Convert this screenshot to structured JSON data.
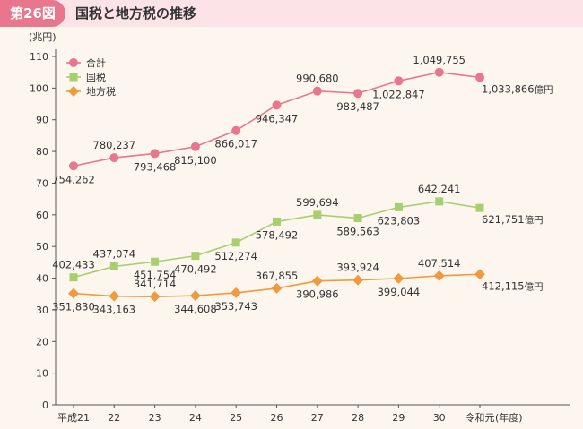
{
  "header": {
    "figure_number": "第26図",
    "title": "国税と地方税の推移"
  },
  "chart_data": {
    "type": "line",
    "title": "国税と地方税の推移",
    "ylabel": "(兆円)",
    "xlabel": "(年度)",
    "ylim": [
      0,
      110
    ],
    "yticks": [
      0,
      10,
      20,
      30,
      40,
      50,
      60,
      70,
      80,
      90,
      100,
      110
    ],
    "categories": [
      "平成21",
      "22",
      "23",
      "24",
      "25",
      "26",
      "27",
      "28",
      "29",
      "30",
      "令和元"
    ],
    "legend_position": "top-left",
    "grid": false,
    "series": [
      {
        "name": "合計",
        "color": "#e8768d",
        "marker": "circle",
        "values": [
          75.4262,
          78.0237,
          79.3468,
          81.51,
          86.6017,
          94.6347,
          99.068,
          98.3487,
          102.2847,
          104.9755,
          103.3866
        ],
        "labels": [
          "754,262",
          "780,237",
          "793,468",
          "815,100",
          "866,017",
          "946,347",
          "990,680",
          "983,487",
          "1,022,847",
          "1,049,755",
          "1,033,866"
        ],
        "end_unit": "億円"
      },
      {
        "name": "国税",
        "color": "#a8cf6f",
        "marker": "square",
        "values": [
          40.2433,
          43.7074,
          45.1754,
          47.0492,
          51.2274,
          57.8492,
          59.9694,
          58.9563,
          62.3803,
          64.2241,
          62.1751
        ],
        "labels": [
          "402,433",
          "437,074",
          "451,754",
          "470,492",
          "512,274",
          "578,492",
          "599,694",
          "589,563",
          "623,803",
          "642,241",
          "621,751"
        ],
        "end_unit": "億円"
      },
      {
        "name": "地方税",
        "color": "#ef9a3c",
        "marker": "diamond",
        "values": [
          35.183,
          34.3163,
          34.1714,
          34.4608,
          35.3743,
          36.7855,
          39.0986,
          39.3924,
          39.9044,
          40.7514,
          41.2115
        ],
        "labels": [
          "351,830",
          "343,163",
          "341,714",
          "344,608",
          "353,743",
          "367,855",
          "390,986",
          "393,924",
          "399,044",
          "407,514",
          "412,115"
        ],
        "end_unit": "億円"
      }
    ]
  }
}
